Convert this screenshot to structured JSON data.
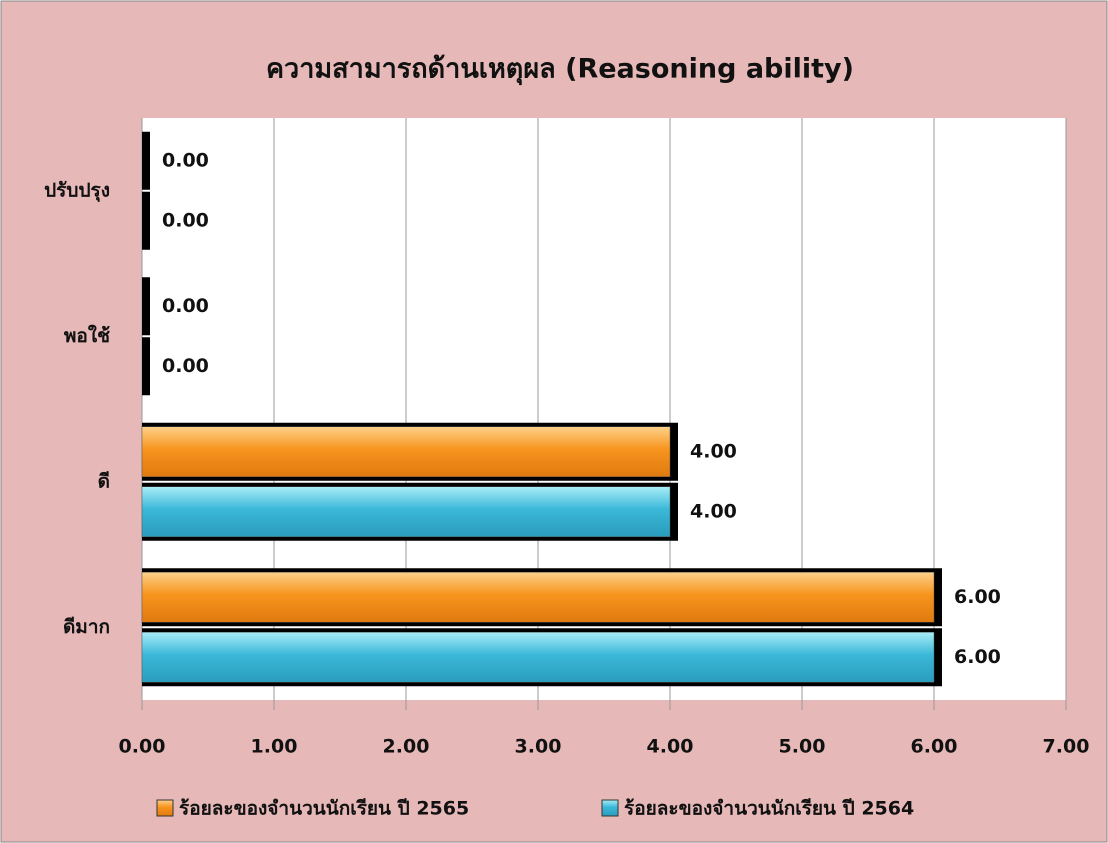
{
  "chart_data": {
    "type": "bar",
    "orientation": "horizontal",
    "title": "ความสามารถด้านเหตุผล (Reasoning ability)",
    "categories": [
      "ปรับปรุง",
      "พอใช้",
      "ดี",
      "ดีมาก"
    ],
    "series": [
      {
        "name": "ร้อยละของจำนวนนักเรียน ปี 2565",
        "color": "#f7941d",
        "values": [
          0,
          0,
          4,
          6
        ],
        "value_labels": [
          "0.00",
          "0.00",
          "4.00",
          "6.00"
        ]
      },
      {
        "name": "ร้อยละของจำนวนนักเรียน ปี 2564",
        "color": "#3bb8d8",
        "values": [
          0,
          0,
          4,
          6
        ],
        "value_labels": [
          "0.00",
          "0.00",
          "4.00",
          "6.00"
        ]
      }
    ],
    "xlim": [
      0,
      7
    ],
    "xticks": [
      {
        "value": 0,
        "label": "0.00"
      },
      {
        "value": 1,
        "label": "1.00"
      },
      {
        "value": 2,
        "label": "2.00"
      },
      {
        "value": 3,
        "label": "3.00"
      },
      {
        "value": 4,
        "label": "4.00"
      },
      {
        "value": 5,
        "label": "5.00"
      },
      {
        "value": 6,
        "label": "6.00"
      },
      {
        "value": 7,
        "label": "7.00"
      }
    ],
    "grid": true,
    "legend": "bottom"
  }
}
